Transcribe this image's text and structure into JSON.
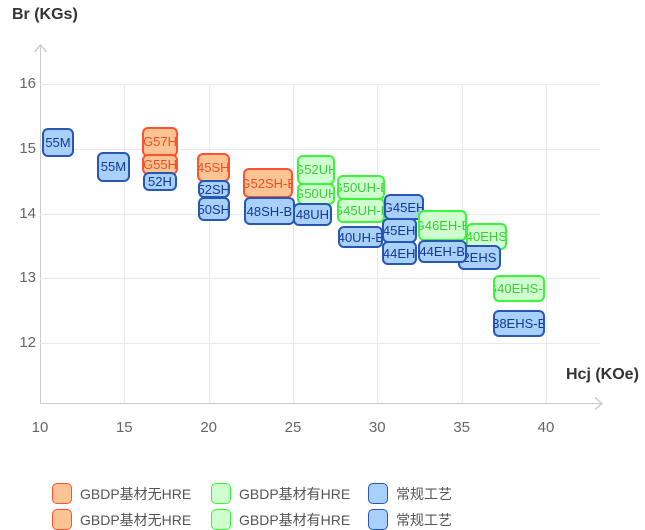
{
  "chart": {
    "y_axis_title": "Br (KGs)",
    "x_axis_title": "Hcj (KOe)"
  },
  "chart_data": {
    "type": "scatter",
    "title": "",
    "xlabel": "Hcj (KOe)",
    "ylabel": "Br (KGs)",
    "xlim": [
      10,
      43.2
    ],
    "ylim": [
      11.1,
      16.6
    ],
    "x_ticks": [
      10,
      15,
      20,
      25,
      30,
      35,
      40
    ],
    "y_ticks": [
      12,
      13,
      14,
      15,
      16
    ],
    "grid": true,
    "legend_position": "bottom",
    "families": {
      "gbdp_no_hre": {
        "label": "GBDP基材无HRE",
        "fill": "#FBC492",
        "border": "#FF5233",
        "text": "#E94F2D"
      },
      "gbdp_hre": {
        "label": "GBDP基材有HRE",
        "fill": "#CFFFCF",
        "border": "#3BF53B",
        "text": "#3CCB3C"
      },
      "conventional": {
        "label": "常规工艺",
        "fill": "#A8D0F8",
        "border": "#2757B5",
        "text": "#16388F"
      }
    },
    "items": [
      {
        "label": "G57H",
        "family": "gbdp_no_hre",
        "hcj": [
          16.07,
          18.16
        ],
        "br": [
          14.88,
          15.34
        ]
      },
      {
        "label": "G55H",
        "family": "gbdp_no_hre",
        "hcj": [
          16.07,
          18.16
        ],
        "br": [
          14.6,
          14.92
        ]
      },
      {
        "label": "45SH",
        "family": "gbdp_no_hre",
        "hcj": [
          19.29,
          21.26
        ],
        "br": [
          14.49,
          14.93
        ]
      },
      {
        "label": "G52SH-B",
        "family": "gbdp_no_hre",
        "hcj": [
          22.05,
          25.02
        ],
        "br": [
          14.24,
          14.7
        ]
      },
      {
        "label": "G52UH",
        "family": "gbdp_hre",
        "hcj": [
          25.22,
          27.49
        ],
        "br": [
          14.44,
          14.91
        ]
      },
      {
        "label": "G50UH",
        "family": "gbdp_hre",
        "hcj": [
          25.22,
          27.49
        ],
        "br": [
          14.13,
          14.48
        ]
      },
      {
        "label": "G50UH-B",
        "family": "gbdp_hre",
        "hcj": [
          27.59,
          30.45
        ],
        "br": [
          14.21,
          14.6
        ]
      },
      {
        "label": "G45UH-B",
        "family": "gbdp_hre",
        "hcj": [
          27.63,
          30.45
        ],
        "br": [
          13.85,
          14.24
        ]
      },
      {
        "label": "55M",
        "family": "conventional",
        "hcj": [
          10.1,
          12.03
        ],
        "br": [
          14.88,
          15.32
        ]
      },
      {
        "label": "55M",
        "family": "conventional",
        "hcj": [
          13.36,
          15.34
        ],
        "br": [
          14.49,
          14.96
        ]
      },
      {
        "label": "52H",
        "family": "conventional",
        "hcj": [
          16.13,
          18.1
        ],
        "br": [
          14.35,
          14.64
        ]
      },
      {
        "label": "52SH",
        "family": "conventional",
        "hcj": [
          19.35,
          21.26
        ],
        "br": [
          14.24,
          14.52
        ]
      },
      {
        "label": "50SH",
        "family": "conventional",
        "hcj": [
          19.35,
          21.26
        ],
        "br": [
          13.88,
          14.26
        ]
      },
      {
        "label": "48SH-B",
        "family": "conventional",
        "hcj": [
          22.09,
          25.12
        ],
        "br": [
          13.82,
          14.26
        ]
      },
      {
        "label": "48UH",
        "family": "conventional",
        "hcj": [
          25.02,
          27.29
        ],
        "br": [
          13.8,
          14.16
        ]
      },
      {
        "label": "40UH-B",
        "family": "conventional",
        "hcj": [
          27.69,
          30.35
        ],
        "br": [
          13.46,
          13.81
        ]
      },
      {
        "label": "G45EH",
        "family": "conventional",
        "hcj": [
          30.4,
          32.77
        ],
        "br": [
          13.9,
          14.3
        ]
      },
      {
        "label": "G46EH-B",
        "family": "gbdp_hre",
        "hcj": [
          32.43,
          35.3
        ],
        "br": [
          13.58,
          14.05
        ]
      },
      {
        "label": "40EHS",
        "family": "gbdp_hre",
        "hcj": [
          35.26,
          37.67
        ],
        "br": [
          13.44,
          13.85
        ]
      },
      {
        "label": "G40EHS-B",
        "family": "gbdp_hre",
        "hcj": [
          36.88,
          39.94
        ],
        "br": [
          12.64,
          13.05
        ]
      },
      {
        "label": "45EH",
        "family": "conventional",
        "hcj": [
          30.26,
          32.33
        ],
        "br": [
          13.54,
          13.93
        ]
      },
      {
        "label": "44EH",
        "family": "conventional",
        "hcj": [
          30.26,
          32.33
        ],
        "br": [
          13.21,
          13.57
        ]
      },
      {
        "label": "2EHS",
        "family": "conventional",
        "hcj": [
          34.8,
          37.31
        ],
        "br": [
          13.12,
          13.51
        ]
      },
      {
        "label": "44EH-B",
        "family": "conventional",
        "hcj": [
          32.39,
          35.3
        ],
        "br": [
          13.23,
          13.6
        ]
      },
      {
        "label": "38EHS-B",
        "family": "conventional",
        "hcj": [
          36.88,
          39.94
        ],
        "br": [
          12.1,
          12.51
        ]
      }
    ]
  },
  "legend": {
    "items": [
      {
        "label": "GBDP基材无HRE",
        "family": "gbdp_no_hre"
      },
      {
        "label": "GBDP基材有HRE",
        "family": "gbdp_hre"
      },
      {
        "label": "常规工艺",
        "family": "conventional"
      }
    ]
  }
}
